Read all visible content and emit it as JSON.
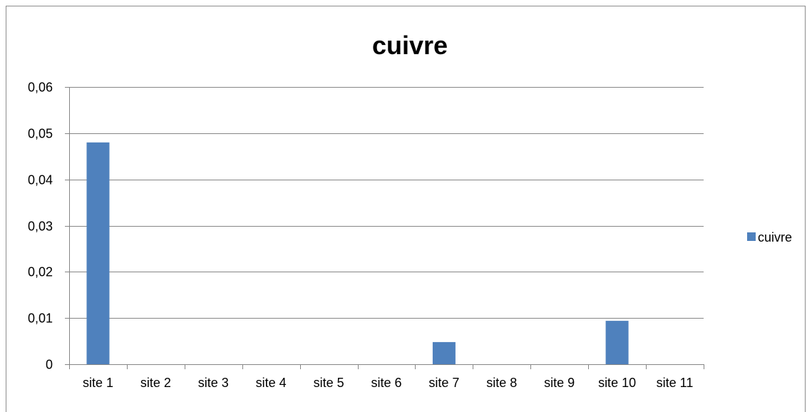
{
  "chart_data": {
    "type": "bar",
    "title": "cuivre",
    "xlabel": "",
    "ylabel": "",
    "categories": [
      "site 1",
      "site 2",
      "site 3",
      "site 4",
      "site 5",
      "site 6",
      "site 7",
      "site 8",
      "site 9",
      "site 10",
      "site 11"
    ],
    "series": [
      {
        "name": "cuivre",
        "values": [
          0.048,
          0,
          0,
          0,
          0,
          0,
          0.0048,
          0,
          0,
          0.0094,
          0
        ],
        "color": "#4f81bd"
      }
    ],
    "ylim": [
      0,
      0.06
    ],
    "yticks": [
      0,
      0.01,
      0.02,
      0.03,
      0.04,
      0.05,
      0.06
    ],
    "ytick_labels": [
      "0",
      "0,01",
      "0,02",
      "0,03",
      "0,04",
      "0,05",
      "0,06"
    ],
    "grid": "horizontal",
    "legend_position": "right",
    "gridline_color": "#868686",
    "axis_color": "#868686"
  }
}
